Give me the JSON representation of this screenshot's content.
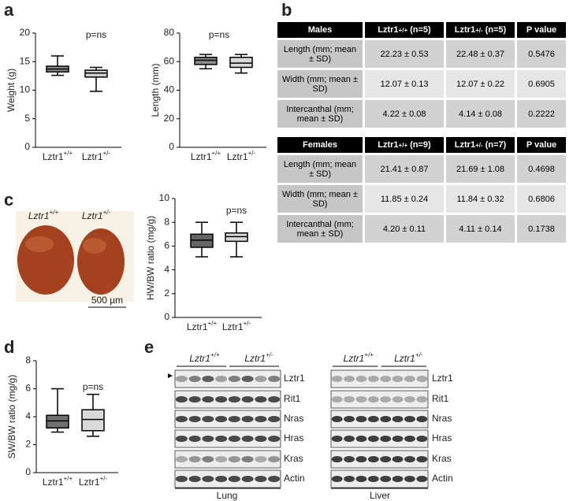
{
  "panel_labels": [
    "a",
    "b",
    "c",
    "d",
    "e"
  ],
  "chart_data": [
    {
      "type": "box",
      "y_label": "Weight (g)",
      "annotation": "p=ns",
      "ylim": [
        0,
        20
      ],
      "yticks": [
        0,
        5,
        10,
        15,
        20
      ],
      "categories": [
        {
          "gene": "Lztr1",
          "genotype": "+/+"
        },
        {
          "gene": "Lztr1",
          "genotype": "+/-"
        }
      ],
      "boxes": [
        {
          "min": 12.6,
          "q1": 13.2,
          "median": 13.7,
          "q3": 14.2,
          "max": 16,
          "color": "#8a8a8a"
        },
        {
          "min": 9.8,
          "q1": 12.3,
          "median": 13.0,
          "q3": 13.5,
          "max": 14,
          "color": "#cfcfcf"
        }
      ]
    },
    {
      "type": "box",
      "y_label": "Length (mm)",
      "annotation": "p=ns",
      "ylim": [
        0,
        80
      ],
      "yticks": [
        0,
        20,
        40,
        60,
        80
      ],
      "categories": [
        {
          "gene": "Lztr1",
          "genotype": "+/+"
        },
        {
          "gene": "Lztr1",
          "genotype": "+/-"
        }
      ],
      "boxes": [
        {
          "min": 55,
          "q1": 58,
          "median": 61,
          "q3": 63,
          "max": 65,
          "color": "#8a8a8a"
        },
        {
          "min": 52,
          "q1": 56,
          "median": 59,
          "q3": 63,
          "max": 65,
          "color": "#d9d9d9"
        }
      ]
    },
    {
      "type": "box",
      "y_label": "HW/BW ratio (mg/g)",
      "annotation": "p=ns",
      "ylim": [
        0,
        10
      ],
      "yticks": [
        0,
        2,
        4,
        6,
        8,
        10
      ],
      "categories": [
        {
          "gene": "Lztr1",
          "genotype": "+/+"
        },
        {
          "gene": "Lztr1",
          "genotype": "+/-"
        }
      ],
      "boxes": [
        {
          "min": 5.1,
          "q1": 5.9,
          "median": 6.5,
          "q3": 7.0,
          "max": 8,
          "color": "#666666"
        },
        {
          "min": 5.1,
          "q1": 6.4,
          "median": 6.8,
          "q3": 7.1,
          "max": 8,
          "color": "#d9d9d9"
        }
      ]
    },
    {
      "type": "box",
      "y_label": "SW/BW ratio (mg/g)",
      "annotation": "p=ns",
      "ylim": [
        0,
        8
      ],
      "yticks": [
        0,
        2,
        4,
        6,
        8
      ],
      "categories": [
        {
          "gene": "Lztr1",
          "genotype": "+/+"
        },
        {
          "gene": "Lztr1",
          "genotype": "+/-"
        }
      ],
      "boxes": [
        {
          "min": 2.9,
          "q1": 3.2,
          "median": 3.7,
          "q3": 4.1,
          "max": 6.0,
          "color": "#707070"
        },
        {
          "min": 2.6,
          "q1": 3.0,
          "median": 3.8,
          "q3": 4.5,
          "max": 5.6,
          "color": "#d9d9d9"
        }
      ]
    }
  ],
  "tables": [
    {
      "header": [
        "Males",
        {
          "gene": "Lztr1",
          "genotype": "+/+",
          "suffix": "(n=5)"
        },
        {
          "gene": "Lztr1",
          "genotype": "+/-",
          "suffix": "(n=5)"
        },
        "P value"
      ],
      "rows": [
        [
          "Length (mm; mean ± SD)",
          "22.23 ± 0.53",
          "22.48 ± 0.37",
          "0.5476"
        ],
        [
          "Width (mm; mean ± SD)",
          "12.07 ± 0.13",
          "12.07 ± 0.22",
          "0.6905"
        ],
        [
          "Intercanthal (mm; mean ± SD)",
          "4.22 ± 0.08",
          "4.14 ± 0.08",
          "0.2222"
        ]
      ]
    },
    {
      "header": [
        "Females",
        {
          "gene": "Lztr1",
          "genotype": "+/+",
          "suffix": "(n=9)"
        },
        {
          "gene": "Lztr1",
          "genotype": "+/-",
          "suffix": "(n=7)"
        },
        "P value"
      ],
      "rows": [
        [
          "Length (mm; mean ± SD)",
          "21.41 ± 0.87",
          "21.69 ± 1.08",
          "0.4698"
        ],
        [
          "Width (mm; mean ± SD)",
          "11.85 ± 0.24",
          "11.84 ± 0.32",
          "0.6806"
        ],
        [
          "Intercanthal (mm; mean ± SD)",
          "4.20 ± 0.11",
          "4.11 ± 0.14",
          "0.1738"
        ]
      ]
    }
  ],
  "heart_images": {
    "labels": [
      {
        "gene": "Lztr1",
        "genotype": "+/+"
      },
      {
        "gene": "Lztr1",
        "genotype": "+/-"
      }
    ],
    "scale_bar": "500 µm"
  },
  "blots": {
    "proteins": [
      "Lztr1",
      "Rit1",
      "Nras",
      "Hras",
      "Kras",
      "Actin"
    ],
    "groups": [
      {
        "gene": "Lztr1",
        "genotype": "+/+"
      },
      {
        "gene": "Lztr1",
        "genotype": "+/-"
      }
    ],
    "tissues": [
      "Lung",
      "Liver"
    ]
  }
}
